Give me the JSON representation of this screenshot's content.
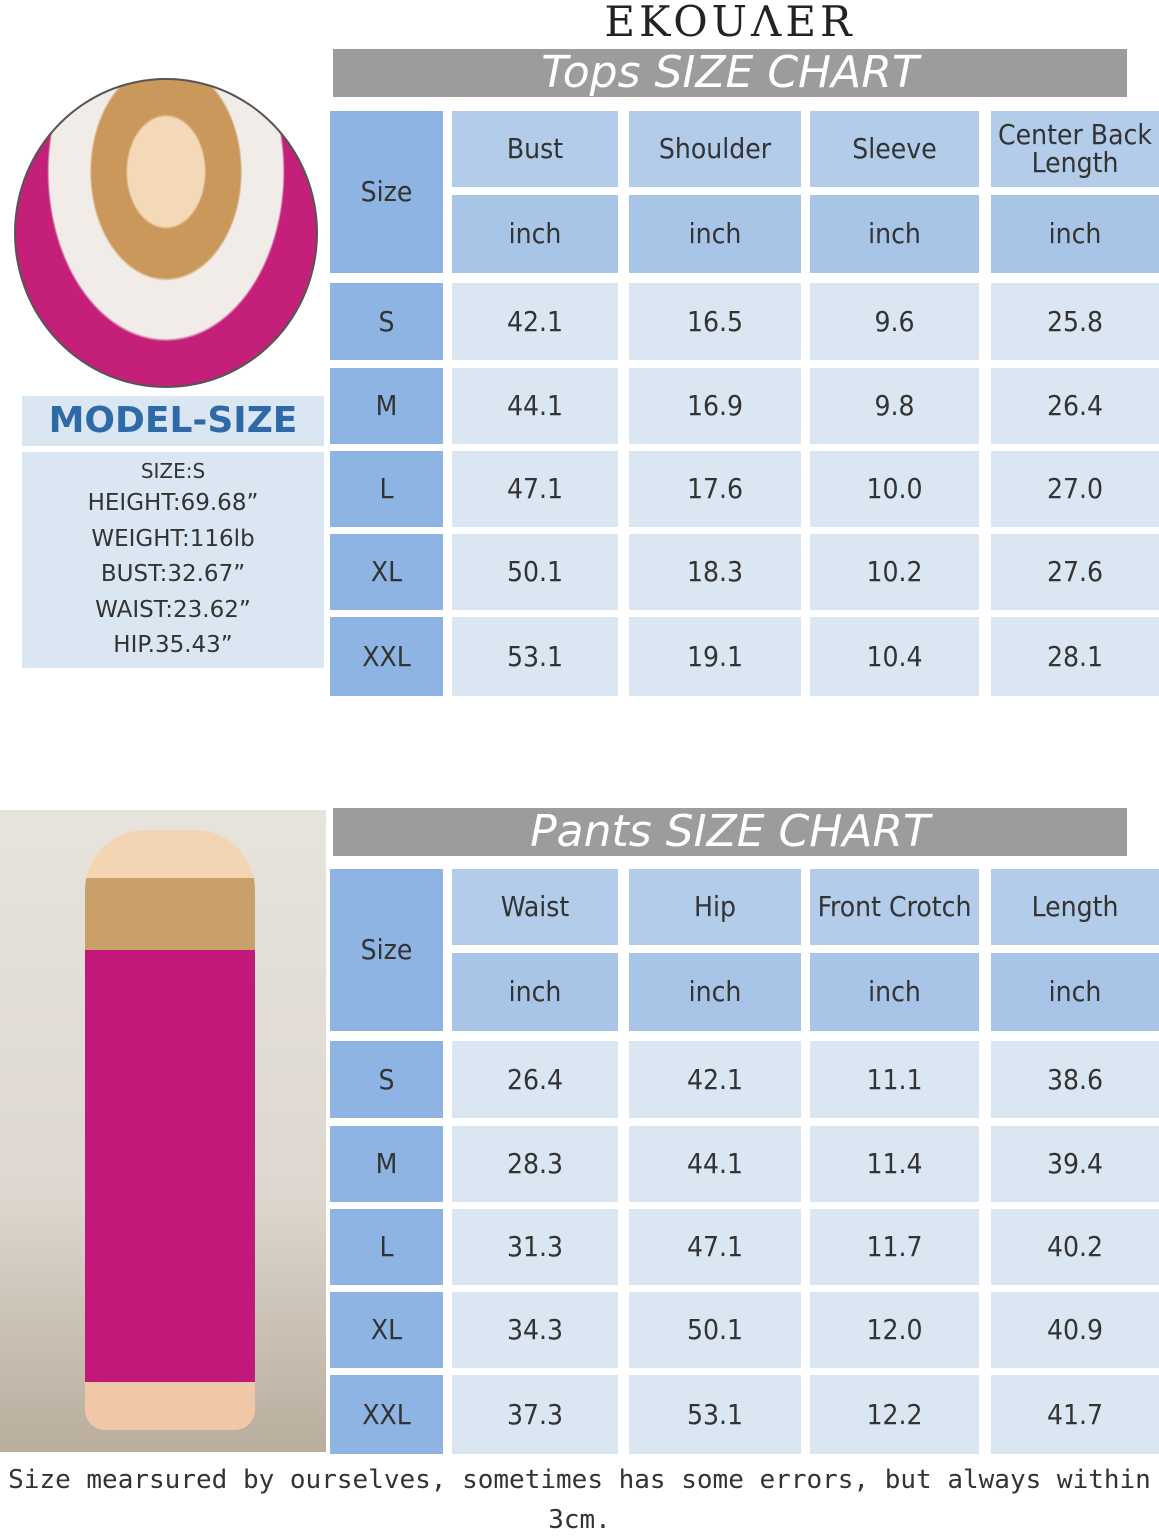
{
  "brand": "EKOUΛER",
  "model": {
    "title": "MODEL-SIZE",
    "lines": [
      "SIZE:S",
      "HEIGHT:69.68”",
      "WEIGHT:116lb",
      "BUST:32.67”",
      "WAIST:23.62”",
      "HIP.35.43”"
    ]
  },
  "tops": {
    "title": "Tops SIZE CHART",
    "size_label": "Size",
    "headers": [
      "Bust",
      "Shoulder",
      "Sleeve",
      "Center Back Length"
    ],
    "unit": "inch",
    "rows": [
      {
        "size": "S",
        "values": [
          "42.1",
          "16.5",
          "9.6",
          "25.8"
        ]
      },
      {
        "size": "M",
        "values": [
          "44.1",
          "16.9",
          "9.8",
          "26.4"
        ]
      },
      {
        "size": "L",
        "values": [
          "47.1",
          "17.6",
          "10.0",
          "27.0"
        ]
      },
      {
        "size": "XL",
        "values": [
          "50.1",
          "18.3",
          "10.2",
          "27.6"
        ]
      },
      {
        "size": "XXL",
        "values": [
          "53.1",
          "19.1",
          "10.4",
          "28.1"
        ]
      }
    ]
  },
  "pants": {
    "title": "Pants SIZE CHART",
    "size_label": "Size",
    "headers": [
      "Waist",
      "Hip",
      "Front Crotch",
      "Length"
    ],
    "unit": "inch",
    "rows": [
      {
        "size": "S",
        "values": [
          "26.4",
          "42.1",
          "11.1",
          "38.6"
        ]
      },
      {
        "size": "M",
        "values": [
          "28.3",
          "44.1",
          "11.4",
          "39.4"
        ]
      },
      {
        "size": "L",
        "values": [
          "31.3",
          "47.1",
          "11.7",
          "40.2"
        ]
      },
      {
        "size": "XL",
        "values": [
          "34.3",
          "50.1",
          "12.0",
          "40.9"
        ]
      },
      {
        "size": "XXL",
        "values": [
          "37.3",
          "53.1",
          "12.2",
          "41.7"
        ]
      }
    ]
  },
  "footer": "Size mearsured by ourselves, sometimes has some errors, but always within 3cm."
}
